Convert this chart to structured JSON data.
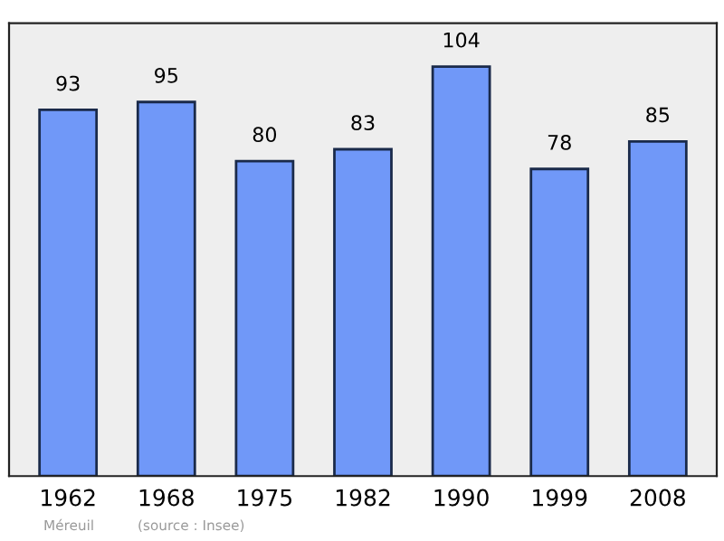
{
  "chart_data": {
    "type": "bar",
    "categories": [
      "1962",
      "1968",
      "1975",
      "1982",
      "1990",
      "1999",
      "2008"
    ],
    "values": [
      93,
      95,
      80,
      83,
      104,
      78,
      85
    ],
    "color": "#7098f8",
    "data_labels": true,
    "ylim": [
      0,
      115
    ],
    "tick_labels": "x",
    "grid": false,
    "annotations": [
      "Méreuil",
      "(source : Insee)"
    ]
  }
}
